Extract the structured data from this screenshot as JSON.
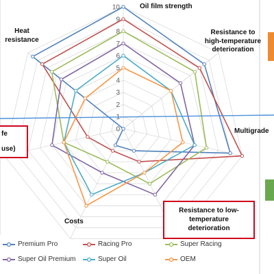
{
  "chart_data": {
    "type": "radar",
    "axes": [
      "Oil film strength",
      "Resistance to high-temperature deterioration",
      "Multigrade",
      "Resistance to low-temperature deterioration",
      "Costs",
      "Life (use)",
      "Heat resistance"
    ],
    "ticks": [
      "0",
      "1",
      "2",
      "3",
      "4",
      "5",
      "6",
      "7",
      "8",
      "9",
      "10"
    ],
    "rmax": 10,
    "series": [
      {
        "name": "Premium Pro",
        "color": "#4f81bd",
        "values": [
          10,
          8.5,
          9,
          2,
          1.5,
          0,
          9.5
        ]
      },
      {
        "name": "Racing Pro",
        "color": "#c0504d",
        "values": [
          9,
          8,
          10,
          3,
          2,
          3,
          8.5
        ]
      },
      {
        "name": "Super Racing",
        "color": "#9bbb59",
        "values": [
          8,
          7.5,
          7,
          5,
          3,
          5,
          7.5
        ]
      },
      {
        "name": "Super Oil Premium",
        "color": "#8064a2",
        "values": [
          7,
          6,
          6,
          6,
          4,
          6,
          6.5
        ]
      },
      {
        "name": "Super Oil",
        "color": "#4bacc6",
        "values": [
          6,
          5,
          6,
          4,
          6,
          5,
          5
        ]
      },
      {
        "name": "OEM",
        "color": "#f79646",
        "values": [
          5,
          5,
          5,
          4,
          7,
          5,
          4
        ]
      }
    ],
    "grid": true,
    "legend": "bottom"
  },
  "labels": {
    "multigrade": "Multigrade",
    "costs": "Costs",
    "heat_line1": "Heat",
    "heat_line2": "resistance",
    "high_temp_line1": "Resistance to",
    "high_temp_line2": "high-temperature",
    "high_temp_line3": "deterioration",
    "low_temp_line1": "Resistance to low-",
    "low_temp_line2": "temperature",
    "low_temp_line3": "deterioration",
    "life_line1": "fe",
    "life_line2": "use)"
  },
  "colors": {
    "callout_border": "#d0021b",
    "accent_line": "#4a90d9",
    "side_tab_orange": "#f08a2e",
    "side_tab_green": "#6aa84f"
  }
}
